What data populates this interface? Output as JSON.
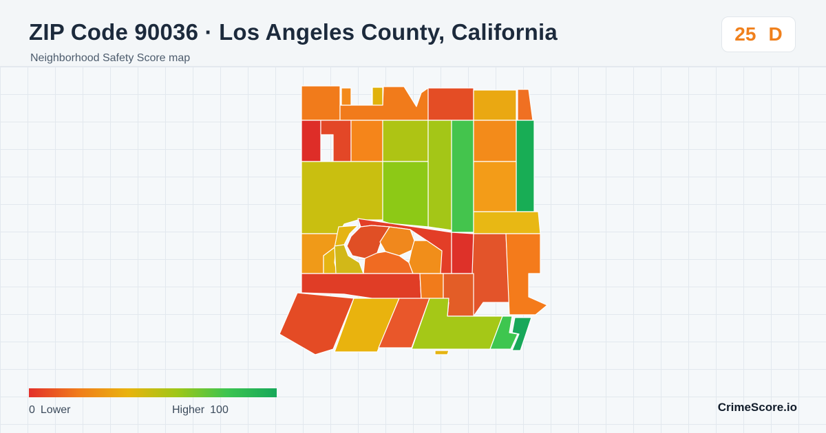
{
  "header": {
    "title": "ZIP Code 90036 · Los Angeles County, California",
    "subtitle": "Neighborhood Safety Score map"
  },
  "score": {
    "value": "25",
    "grade": "D",
    "color": "#f0801c"
  },
  "legend": {
    "min_value": "0",
    "min_label": "Lower",
    "max_label": "Higher",
    "max_value": "100",
    "gradient_colors": [
      "#e3302a",
      "#f07d1b",
      "#e9b30e",
      "#9ec718",
      "#3cc450",
      "#17a85a"
    ]
  },
  "brand": "CrimeScore.io",
  "map": {
    "tract_colors": {
      "t01": "#f17b1b",
      "t02": "#f17b1b",
      "t03": "#e1b20c",
      "t04": "#f38a1b",
      "t05": "#e44d25",
      "t06": "#eaa812",
      "t07": "#f07022",
      "t08": "#de2d28",
      "t09": "#e34727",
      "t10": "#f5851a",
      "t11": "#aec414",
      "t12": "#a4c617",
      "t13": "#44c44d",
      "t14": "#f38b1a",
      "t15": "#18ad55",
      "t16": "#c9bf10",
      "t17": "#8dc916",
      "t18": "#3ec64f",
      "t19": "#f39c18",
      "t20": "#e8b814",
      "t21": "#f09a18",
      "t22": "#e33e27",
      "t23": "#e04f25",
      "t24": "#f0881d",
      "t25": "#de3129",
      "t26": "#e3542a",
      "t27": "#f47b1b",
      "t28": "#d2b818",
      "t29": "#e03d26",
      "t30": "#f06b22",
      "t31": "#f17b1b",
      "t32": "#e35d27",
      "t33": "#e9b30e",
      "t34": "#e44b25",
      "t35": "#a5c817",
      "t36": "#e9572a",
      "t37": "#18a85a",
      "t38": "#e5b412",
      "t39": "#f18e1a"
    }
  }
}
